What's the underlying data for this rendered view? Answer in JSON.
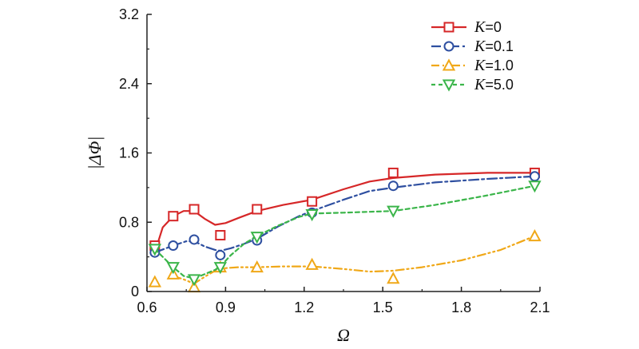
{
  "chart_data": {
    "type": "line",
    "title": "",
    "xlabel": "Ω",
    "ylabel": "|ΔΦ|",
    "xlim": [
      0.6,
      2.1
    ],
    "ylim": [
      0,
      3.2
    ],
    "xticks": [
      "0.6",
      "0.9",
      "1.2",
      "1.5",
      "1.8",
      "2.1"
    ],
    "xtick_values": [
      0.6,
      0.9,
      1.2,
      1.5,
      1.8,
      2.1
    ],
    "yticks": [
      "0",
      "0.8",
      "1.6",
      "2.4",
      "3.2"
    ],
    "ytick_values": [
      0,
      0.8,
      1.6,
      2.4,
      3.2
    ],
    "grid": false,
    "legend_position": "top-right",
    "series": [
      {
        "name": "K=0",
        "legend_symbol": "K",
        "legend_value": "=0",
        "color": "#d62728",
        "marker": "square",
        "line_style": "solid",
        "points": [
          {
            "x": 0.63,
            "y": 0.53
          },
          {
            "x": 0.7,
            "y": 0.87
          },
          {
            "x": 0.78,
            "y": 0.95
          },
          {
            "x": 0.88,
            "y": 0.65
          },
          {
            "x": 1.02,
            "y": 0.95
          },
          {
            "x": 1.23,
            "y": 1.04
          },
          {
            "x": 1.54,
            "y": 1.37
          },
          {
            "x": 2.08,
            "y": 1.37
          }
        ],
        "curve": [
          [
            0.63,
            0.45
          ],
          [
            0.66,
            0.74
          ],
          [
            0.7,
            0.87
          ],
          [
            0.74,
            0.93
          ],
          [
            0.78,
            0.93
          ],
          [
            0.82,
            0.84
          ],
          [
            0.86,
            0.77
          ],
          [
            0.9,
            0.79
          ],
          [
            0.95,
            0.85
          ],
          [
            1.02,
            0.93
          ],
          [
            1.12,
            1.0
          ],
          [
            1.23,
            1.06
          ],
          [
            1.35,
            1.18
          ],
          [
            1.45,
            1.27
          ],
          [
            1.54,
            1.31
          ],
          [
            1.7,
            1.35
          ],
          [
            1.9,
            1.37
          ],
          [
            2.08,
            1.37
          ]
        ]
      },
      {
        "name": "K=0.1",
        "legend_symbol": "K",
        "legend_value": "=0.1",
        "color": "#2e4fa0",
        "marker": "circle",
        "line_style": "dashdot",
        "points": [
          {
            "x": 0.63,
            "y": 0.45
          },
          {
            "x": 0.7,
            "y": 0.53
          },
          {
            "x": 0.78,
            "y": 0.6
          },
          {
            "x": 0.88,
            "y": 0.42
          },
          {
            "x": 1.02,
            "y": 0.59
          },
          {
            "x": 1.23,
            "y": 0.91
          },
          {
            "x": 1.54,
            "y": 1.22
          },
          {
            "x": 2.08,
            "y": 1.33
          }
        ],
        "curve": [
          [
            0.63,
            0.45
          ],
          [
            0.7,
            0.53
          ],
          [
            0.75,
            0.58
          ],
          [
            0.78,
            0.58
          ],
          [
            0.82,
            0.52
          ],
          [
            0.86,
            0.48
          ],
          [
            0.88,
            0.47
          ],
          [
            0.92,
            0.5
          ],
          [
            0.97,
            0.55
          ],
          [
            1.02,
            0.61
          ],
          [
            1.1,
            0.75
          ],
          [
            1.18,
            0.87
          ],
          [
            1.23,
            0.93
          ],
          [
            1.35,
            1.06
          ],
          [
            1.45,
            1.16
          ],
          [
            1.54,
            1.2
          ],
          [
            1.7,
            1.26
          ],
          [
            1.9,
            1.3
          ],
          [
            2.08,
            1.33
          ]
        ]
      },
      {
        "name": "K=1.0",
        "legend_symbol": "K",
        "legend_value": "=1.0",
        "color": "#f0a818",
        "marker": "triangle-up",
        "line_style": "dashdotdot",
        "points": [
          {
            "x": 0.63,
            "y": 0.11
          },
          {
            "x": 0.7,
            "y": 0.2
          },
          {
            "x": 0.78,
            "y": 0.05
          },
          {
            "x": 0.88,
            "y": 0.28
          },
          {
            "x": 1.02,
            "y": 0.28
          },
          {
            "x": 1.23,
            "y": 0.31
          },
          {
            "x": 1.54,
            "y": 0.15
          },
          {
            "x": 2.08,
            "y": 0.64
          }
        ],
        "curve": [
          [
            0.7,
            0.18
          ],
          [
            0.74,
            0.14
          ],
          [
            0.78,
            0.09
          ],
          [
            0.82,
            0.17
          ],
          [
            0.86,
            0.24
          ],
          [
            0.9,
            0.27
          ],
          [
            0.95,
            0.28
          ],
          [
            1.02,
            0.28
          ],
          [
            1.12,
            0.29
          ],
          [
            1.23,
            0.29
          ],
          [
            1.35,
            0.26
          ],
          [
            1.45,
            0.23
          ],
          [
            1.54,
            0.24
          ],
          [
            1.65,
            0.28
          ],
          [
            1.8,
            0.36
          ],
          [
            1.95,
            0.48
          ],
          [
            2.08,
            0.64
          ]
        ]
      },
      {
        "name": "K=5.0",
        "legend_symbol": "K",
        "legend_value": "=5.0",
        "color": "#3bb54a",
        "marker": "triangle-down",
        "line_style": "dashed",
        "points": [
          {
            "x": 0.63,
            "y": 0.49
          },
          {
            "x": 0.7,
            "y": 0.28
          },
          {
            "x": 0.78,
            "y": 0.14
          },
          {
            "x": 0.88,
            "y": 0.28
          },
          {
            "x": 1.02,
            "y": 0.63
          },
          {
            "x": 1.23,
            "y": 0.89
          },
          {
            "x": 1.54,
            "y": 0.93
          },
          {
            "x": 2.08,
            "y": 1.22
          }
        ],
        "curve": [
          [
            0.63,
            0.49
          ],
          [
            0.66,
            0.4
          ],
          [
            0.7,
            0.28
          ],
          [
            0.74,
            0.18
          ],
          [
            0.78,
            0.15
          ],
          [
            0.82,
            0.2
          ],
          [
            0.86,
            0.25
          ],
          [
            0.88,
            0.29
          ],
          [
            0.92,
            0.42
          ],
          [
            0.97,
            0.55
          ],
          [
            1.02,
            0.64
          ],
          [
            1.1,
            0.76
          ],
          [
            1.18,
            0.86
          ],
          [
            1.23,
            0.9
          ],
          [
            1.35,
            0.91
          ],
          [
            1.45,
            0.92
          ],
          [
            1.54,
            0.93
          ],
          [
            1.7,
            1.0
          ],
          [
            1.9,
            1.11
          ],
          [
            2.08,
            1.22
          ]
        ]
      }
    ]
  }
}
